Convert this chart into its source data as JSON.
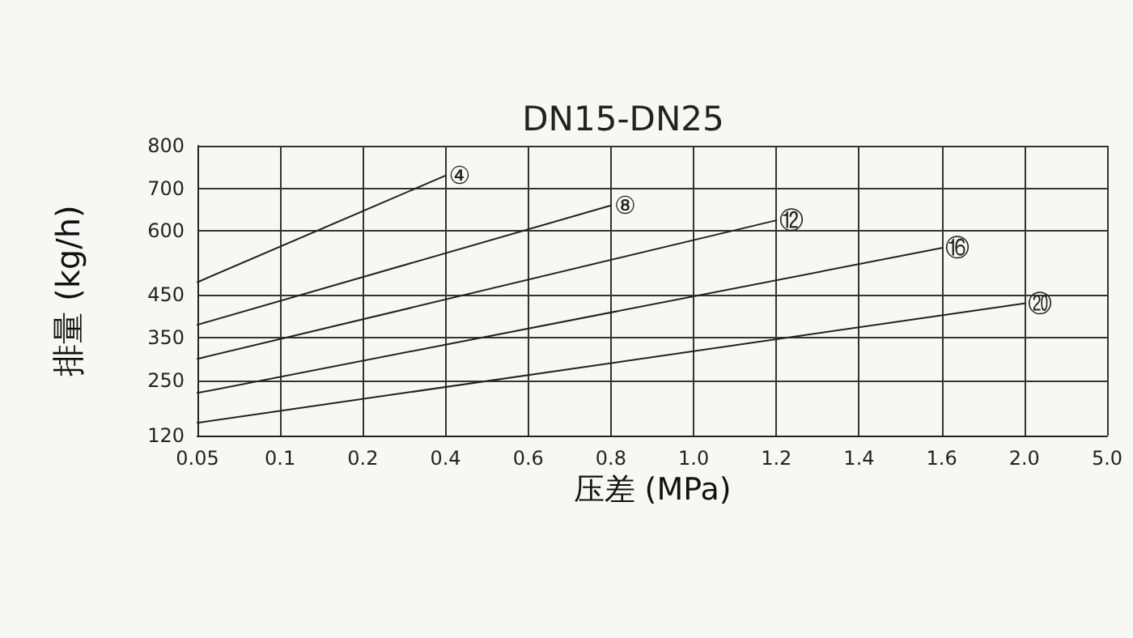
{
  "chart_data": {
    "type": "line",
    "title": "DN15-DN25",
    "xlabel": "压差 (MPa)",
    "ylabel": "排量 (kg/h)",
    "categories": [
      "0.05",
      "0.1",
      "0.2",
      "0.4",
      "0.6",
      "0.8",
      "1.0",
      "1.2",
      "1.4",
      "1.6",
      "2.0",
      "5.0"
    ],
    "ylim": [
      120,
      800
    ],
    "yticks": [
      120,
      250,
      350,
      450,
      600,
      700,
      800
    ],
    "grid": true,
    "legend": false,
    "marker": "none",
    "line_style": "solid",
    "series": [
      {
        "name": "④",
        "color": "#222222",
        "x": [
          "0.05",
          "0.4"
        ],
        "values": [
          480,
          730
        ]
      },
      {
        "name": "⑧",
        "color": "#222222",
        "x": [
          "0.05",
          "0.8"
        ],
        "values": [
          380,
          660
        ]
      },
      {
        "name": "⑫",
        "color": "#222222",
        "x": [
          "0.05",
          "1.2"
        ],
        "values": [
          300,
          625
        ]
      },
      {
        "name": "⑯",
        "color": "#222222",
        "x": [
          "0.05",
          "1.6"
        ],
        "values": [
          220,
          560
        ]
      },
      {
        "name": "⑳",
        "color": "#222222",
        "x": [
          "0.05",
          "2.0"
        ],
        "values": [
          150,
          430
        ]
      }
    ]
  }
}
